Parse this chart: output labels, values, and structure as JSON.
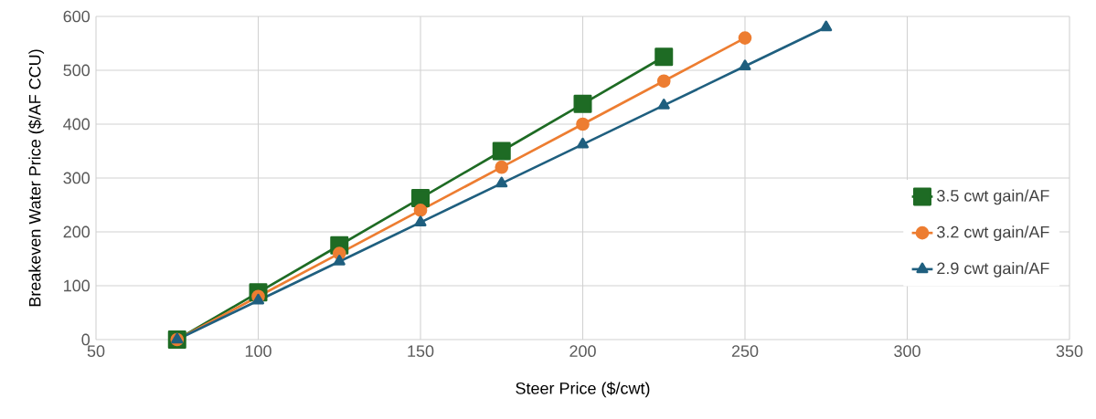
{
  "chart_data": {
    "type": "line",
    "xlabel": "Steer Price ($/cwt)",
    "ylabel": "Breakeven Water Price ($/AF CCU)",
    "x": [
      75,
      100,
      125,
      150,
      175,
      200,
      225,
      250,
      275
    ],
    "series": [
      {
        "name": "3.5 cwt gain/AF",
        "color": "#1e6b24",
        "marker": "square",
        "values": [
          0,
          87.5,
          175,
          262.5,
          350,
          437.5,
          525,
          null,
          null
        ]
      },
      {
        "name": "3.2 cwt gain/AF",
        "color": "#ed7d31",
        "marker": "circle",
        "values": [
          0,
          80,
          160,
          240,
          320,
          400,
          480,
          560,
          null
        ]
      },
      {
        "name": "2.9 cwt gain/AF",
        "color": "#1f5f7f",
        "marker": "triangle",
        "values": [
          0,
          72.5,
          145,
          217.5,
          290,
          362.5,
          435,
          507.5,
          580
        ]
      }
    ],
    "xlim": [
      50,
      350
    ],
    "ylim": [
      0,
      600
    ],
    "xticks": [
      50,
      100,
      150,
      200,
      250,
      300,
      350
    ],
    "yticks": [
      0,
      100,
      200,
      300,
      400,
      500,
      600
    ],
    "grid": true,
    "legend": "right",
    "line_style": "solid"
  }
}
